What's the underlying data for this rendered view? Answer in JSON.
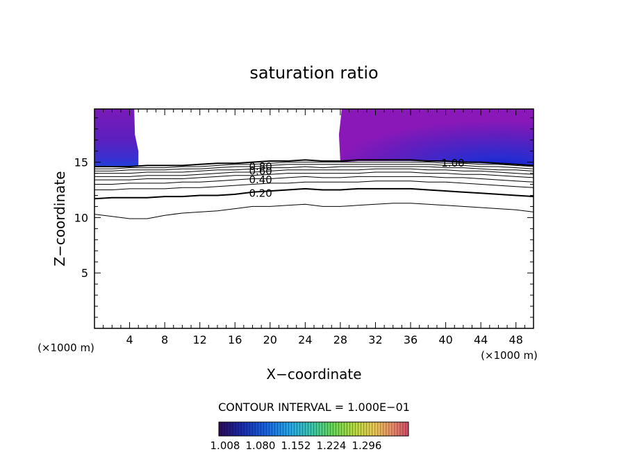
{
  "chart_data": {
    "type": "contour",
    "title": "saturation ratio",
    "xlabel": "X−coordinate",
    "ylabel": "Z−coordinate",
    "x_unit_left": "(×1000 m)",
    "x_unit_right": "(×1000 m)",
    "xlim": [
      0,
      50
    ],
    "ylim": [
      0,
      19.8
    ],
    "x_ticks": [
      4,
      8,
      12,
      16,
      20,
      24,
      28,
      32,
      36,
      40,
      44,
      48
    ],
    "y_ticks": [
      5,
      10,
      15
    ],
    "contour_labels": [
      {
        "text": "0.80",
        "x": 17.6,
        "z": 14.6
      },
      {
        "text": "0.60",
        "x": 17.6,
        "z": 14.2
      },
      {
        "text": "0.40",
        "x": 17.6,
        "z": 13.4
      },
      {
        "text": "0.20",
        "x": 17.6,
        "z": 12.2
      },
      {
        "text": "1.00",
        "x": 39.5,
        "z": 14.9
      }
    ],
    "contour_lines": [
      {
        "level": 0.1,
        "bold": false,
        "x": [
          0,
          2,
          4,
          6,
          8,
          10,
          12,
          14,
          16,
          18,
          20,
          22,
          24,
          26,
          28,
          30,
          32,
          34,
          36,
          38,
          40,
          42,
          44,
          46,
          48,
          50
        ],
        "z": [
          10.3,
          10.1,
          9.9,
          9.9,
          10.2,
          10.4,
          10.5,
          10.6,
          10.8,
          11.0,
          11.0,
          11.1,
          11.2,
          11.0,
          11.0,
          11.1,
          11.2,
          11.3,
          11.3,
          11.2,
          11.1,
          11.0,
          10.9,
          10.8,
          10.7,
          10.5
        ]
      },
      {
        "level": 0.2,
        "bold": true,
        "x": [
          0,
          2,
          4,
          6,
          8,
          10,
          12,
          14,
          16,
          18,
          20,
          22,
          24,
          26,
          28,
          30,
          32,
          34,
          36,
          38,
          40,
          42,
          44,
          46,
          48,
          50
        ],
        "z": [
          11.7,
          11.8,
          11.8,
          11.8,
          11.9,
          11.9,
          12.0,
          12.0,
          12.1,
          12.3,
          12.4,
          12.5,
          12.6,
          12.5,
          12.5,
          12.6,
          12.6,
          12.6,
          12.6,
          12.5,
          12.4,
          12.3,
          12.2,
          12.1,
          12.0,
          11.9
        ]
      },
      {
        "level": 0.3,
        "bold": false,
        "x": [
          0,
          2,
          4,
          6,
          8,
          10,
          12,
          14,
          16,
          18,
          20,
          22,
          24,
          26,
          28,
          30,
          32,
          34,
          36,
          38,
          40,
          42,
          44,
          46,
          48,
          50
        ],
        "z": [
          12.5,
          12.5,
          12.6,
          12.6,
          12.6,
          12.7,
          12.7,
          12.8,
          12.9,
          13.0,
          13.1,
          13.1,
          13.2,
          13.2,
          13.2,
          13.2,
          13.3,
          13.3,
          13.3,
          13.2,
          13.2,
          13.1,
          13.0,
          12.9,
          12.8,
          12.7
        ]
      },
      {
        "level": 0.4,
        "bold": false,
        "x": [
          0,
          2,
          4,
          6,
          8,
          10,
          12,
          14,
          16,
          18,
          20,
          22,
          24,
          26,
          28,
          30,
          32,
          34,
          36,
          38,
          40,
          42,
          44,
          46,
          48,
          50
        ],
        "z": [
          13.0,
          13.0,
          13.1,
          13.1,
          13.1,
          13.2,
          13.2,
          13.3,
          13.4,
          13.5,
          13.5,
          13.6,
          13.7,
          13.6,
          13.6,
          13.7,
          13.7,
          13.7,
          13.7,
          13.7,
          13.6,
          13.6,
          13.5,
          13.4,
          13.3,
          13.2
        ]
      },
      {
        "level": 0.5,
        "bold": false,
        "x": [
          0,
          2,
          4,
          6,
          8,
          10,
          12,
          14,
          16,
          18,
          20,
          22,
          24,
          26,
          28,
          30,
          32,
          34,
          36,
          38,
          40,
          42,
          44,
          46,
          48,
          50
        ],
        "z": [
          13.4,
          13.4,
          13.4,
          13.5,
          13.5,
          13.5,
          13.6,
          13.7,
          13.8,
          13.8,
          13.9,
          14.0,
          14.0,
          14.0,
          14.0,
          14.0,
          14.1,
          14.1,
          14.1,
          14.0,
          14.0,
          13.9,
          13.9,
          13.8,
          13.7,
          13.6
        ]
      },
      {
        "level": 0.6,
        "bold": false,
        "x": [
          0,
          2,
          4,
          6,
          8,
          10,
          12,
          14,
          16,
          18,
          20,
          22,
          24,
          26,
          28,
          30,
          32,
          34,
          36,
          38,
          40,
          42,
          44,
          46,
          48,
          50
        ],
        "z": [
          13.7,
          13.7,
          13.7,
          13.8,
          13.8,
          13.8,
          13.9,
          14.0,
          14.1,
          14.1,
          14.2,
          14.3,
          14.3,
          14.3,
          14.3,
          14.3,
          14.4,
          14.4,
          14.4,
          14.3,
          14.3,
          14.2,
          14.2,
          14.1,
          14.0,
          13.9
        ]
      },
      {
        "level": 0.7,
        "bold": false,
        "x": [
          0,
          2,
          4,
          6,
          8,
          10,
          12,
          14,
          16,
          18,
          20,
          22,
          24,
          26,
          28,
          30,
          32,
          34,
          36,
          38,
          40,
          42,
          44,
          46,
          48,
          50
        ],
        "z": [
          14.0,
          14.0,
          14.0,
          14.1,
          14.1,
          14.1,
          14.2,
          14.3,
          14.3,
          14.4,
          14.5,
          14.5,
          14.6,
          14.5,
          14.6,
          14.6,
          14.6,
          14.6,
          14.6,
          14.6,
          14.5,
          14.5,
          14.4,
          14.3,
          14.3,
          14.2
        ]
      },
      {
        "level": 0.8,
        "bold": false,
        "x": [
          0,
          2,
          4,
          6,
          8,
          10,
          12,
          14,
          16,
          18,
          20,
          22,
          24,
          26,
          28,
          30,
          32,
          34,
          36,
          38,
          40,
          42,
          44,
          46,
          48,
          50
        ],
        "z": [
          14.2,
          14.2,
          14.3,
          14.3,
          14.3,
          14.4,
          14.4,
          14.5,
          14.6,
          14.6,
          14.7,
          14.8,
          14.8,
          14.8,
          14.8,
          14.8,
          14.8,
          14.8,
          14.8,
          14.8,
          14.7,
          14.7,
          14.6,
          14.6,
          14.5,
          14.4
        ]
      },
      {
        "level": 0.9,
        "bold": false,
        "x": [
          0,
          2,
          4,
          6,
          8,
          10,
          12,
          14,
          16,
          18,
          20,
          22,
          24,
          26,
          28,
          30,
          32,
          34,
          36,
          38,
          40,
          42,
          44,
          46,
          48,
          50
        ],
        "z": [
          14.4,
          14.4,
          14.5,
          14.5,
          14.5,
          14.6,
          14.6,
          14.7,
          14.8,
          14.8,
          14.9,
          15.0,
          15.0,
          15.0,
          15.0,
          15.0,
          15.0,
          15.0,
          15.0,
          15.0,
          14.9,
          14.9,
          14.8,
          14.8,
          14.7,
          14.6
        ]
      },
      {
        "level": 1.0,
        "bold": true,
        "x": [
          0,
          2,
          4,
          6,
          8,
          10,
          12,
          14,
          16,
          18,
          20,
          22,
          24,
          26,
          28,
          30,
          32,
          34,
          36,
          38,
          40,
          42,
          44,
          46,
          48,
          50
        ],
        "z": [
          14.6,
          14.6,
          14.6,
          14.7,
          14.7,
          14.7,
          14.8,
          14.9,
          14.9,
          15.0,
          15.1,
          15.1,
          15.2,
          15.1,
          15.1,
          15.2,
          15.2,
          15.2,
          15.2,
          15.1,
          15.1,
          15.0,
          15.0,
          14.9,
          14.8,
          14.7
        ]
      }
    ],
    "shaded_regions": [
      {
        "name": "supersaturated-left",
        "x_range": [
          0,
          5
        ],
        "z_top": 19.8,
        "z_bottom": 14.6,
        "color": "#6a16b8"
      },
      {
        "name": "supersaturated-right",
        "x_range": [
          28,
          50
        ],
        "z_top": 19.8,
        "z_bottom": 15.0,
        "color": "#7a1cc0"
      }
    ],
    "colorbar": {
      "label": "CONTOUR INTERVAL = 1.000E−01",
      "tick_labels": [
        "1.008",
        "1.080",
        "1.152",
        "1.224",
        "1.296"
      ],
      "colors": [
        "#2a0a55",
        "#1a2aa8",
        "#1d63d8",
        "#2fa7e0",
        "#44c4a4",
        "#6ad35a",
        "#b8d84a",
        "#e6c85a",
        "#e88b6a",
        "#d14a6a"
      ]
    }
  }
}
